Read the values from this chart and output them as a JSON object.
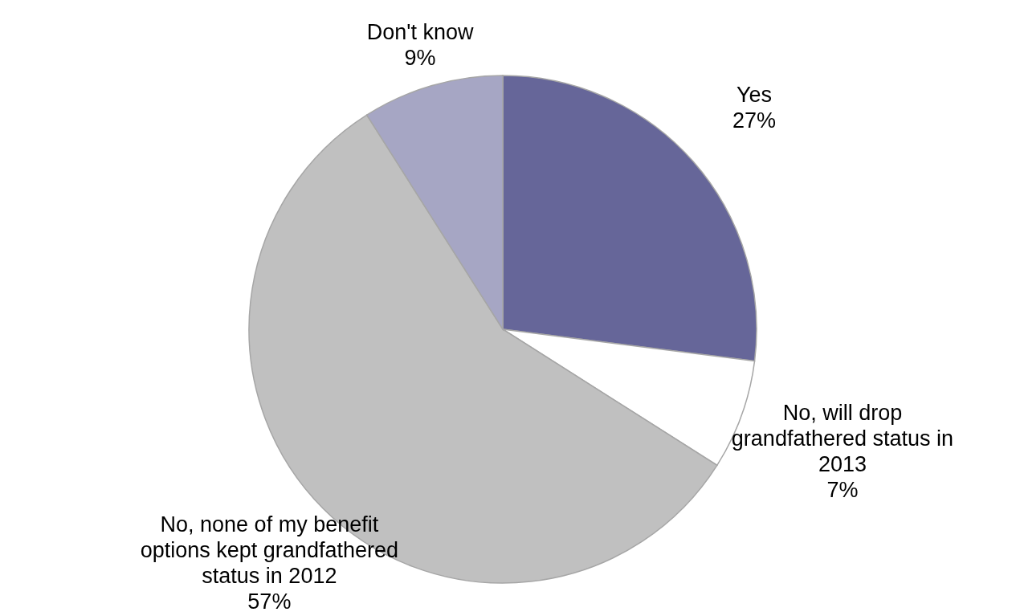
{
  "chart_data": {
    "type": "pie",
    "categories": [
      "Yes",
      "No, will drop grandfathered status in 2013",
      "No, none of my benefit options kept grandfathered status in 2012",
      "Don't know"
    ],
    "values": [
      27,
      7,
      57,
      9
    ],
    "colors": [
      "#666699",
      "#ffffff",
      "#c0c0c0",
      "#a6a6c4"
    ],
    "value_labels": [
      "27%",
      "7%",
      "57%",
      "9%"
    ],
    "legend": false
  }
}
